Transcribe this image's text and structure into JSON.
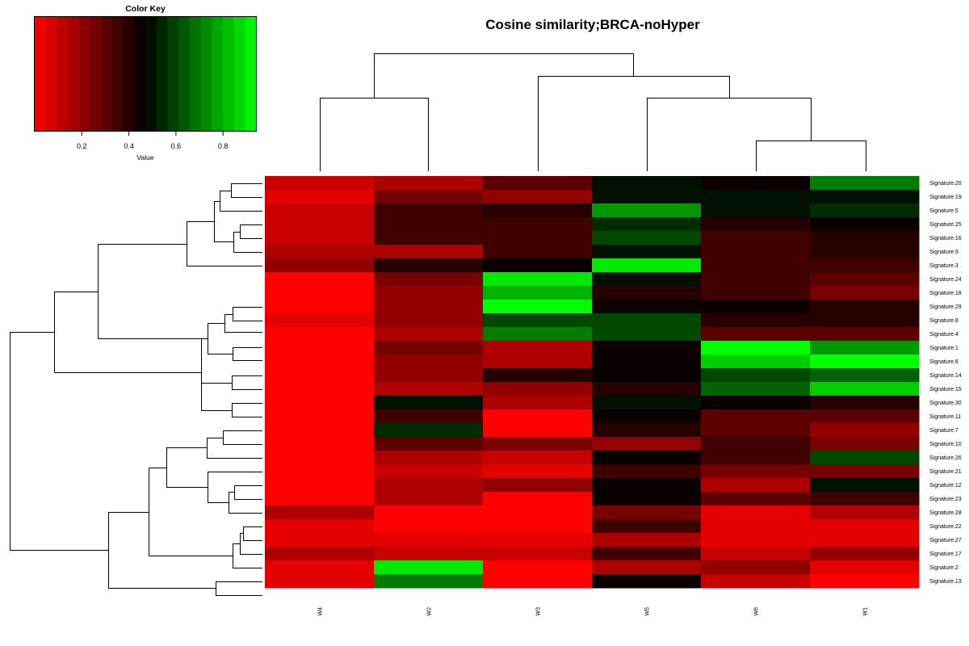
{
  "chart_data": {
    "type": "heatmap",
    "title": "Cosine similarity;BRCA-noHyper",
    "columns": [
      "W4",
      "W2",
      "W3",
      "W5",
      "W6",
      "W1"
    ],
    "rows": [
      "Signature.20",
      "Signature.19",
      "Signature.5",
      "Signature.25",
      "Signature.16",
      "Signature.9",
      "Signature.3",
      "Signature.24",
      "Signature.18",
      "Signature.29",
      "Signature.8",
      "Signature.4",
      "Signature.1",
      "Signature.6",
      "Signature.14",
      "Signature.15",
      "Signature.30",
      "Signature.11",
      "Signature.7",
      "Signature.10",
      "Signature.26",
      "Signature.21",
      "Signature.12",
      "Signature.23",
      "Signature.28",
      "Signature.22",
      "Signature.27",
      "Signature.17",
      "Signature.2",
      "Signature.13"
    ],
    "values": [
      [
        0.1,
        0.15,
        0.3,
        0.5,
        0.45,
        0.7
      ],
      [
        0.05,
        0.25,
        0.2,
        0.5,
        0.5,
        0.5
      ],
      [
        0.1,
        0.35,
        0.4,
        0.75,
        0.5,
        0.55
      ],
      [
        0.1,
        0.35,
        0.35,
        0.55,
        0.4,
        0.45
      ],
      [
        0.1,
        0.35,
        0.35,
        0.6,
        0.35,
        0.4
      ],
      [
        0.15,
        0.15,
        0.35,
        0.5,
        0.35,
        0.4
      ],
      [
        0.2,
        0.4,
        0.45,
        0.9,
        0.35,
        0.35
      ],
      [
        0.0,
        0.25,
        0.9,
        0.5,
        0.35,
        0.3
      ],
      [
        0.0,
        0.2,
        0.8,
        0.4,
        0.35,
        0.25
      ],
      [
        0.0,
        0.2,
        0.95,
        0.45,
        0.45,
        0.4
      ],
      [
        0.05,
        0.2,
        0.6,
        0.6,
        0.4,
        0.4
      ],
      [
        0.0,
        0.15,
        0.7,
        0.6,
        0.3,
        0.3
      ],
      [
        0.0,
        0.25,
        0.15,
        0.45,
        0.95,
        0.75
      ],
      [
        0.0,
        0.2,
        0.15,
        0.45,
        0.85,
        0.95
      ],
      [
        0.0,
        0.2,
        0.4,
        0.45,
        0.6,
        0.65
      ],
      [
        0.0,
        0.15,
        0.2,
        0.4,
        0.65,
        0.85
      ],
      [
        0.0,
        0.5,
        0.15,
        0.5,
        0.45,
        0.4
      ],
      [
        0.0,
        0.35,
        0.0,
        0.45,
        0.3,
        0.3
      ],
      [
        0.0,
        0.55,
        0.0,
        0.4,
        0.3,
        0.2
      ],
      [
        0.0,
        0.3,
        0.25,
        0.2,
        0.35,
        0.25
      ],
      [
        0.0,
        0.15,
        0.1,
        0.45,
        0.35,
        0.6
      ],
      [
        0.0,
        0.1,
        0.05,
        0.35,
        0.25,
        0.25
      ],
      [
        0.0,
        0.15,
        0.2,
        0.45,
        0.15,
        0.5
      ],
      [
        0.0,
        0.15,
        0.0,
        0.45,
        0.3,
        0.35
      ],
      [
        0.15,
        0.0,
        0.0,
        0.25,
        0.05,
        0.15
      ],
      [
        0.05,
        0.0,
        0.0,
        0.35,
        0.05,
        0.05
      ],
      [
        0.05,
        0.05,
        0.05,
        0.15,
        0.05,
        0.05
      ],
      [
        0.15,
        0.1,
        0.1,
        0.35,
        0.1,
        0.2
      ],
      [
        0.05,
        0.9,
        0.0,
        0.15,
        0.2,
        0.05
      ],
      [
        0.05,
        0.7,
        0.0,
        0.45,
        0.1,
        0.0
      ]
    ],
    "color_key": {
      "title": "Color Key",
      "xlabel": "Value",
      "ticks": [
        "0.2",
        "0.4",
        "0.6",
        "0.8"
      ],
      "tick_values": [
        0.2,
        0.4,
        0.6,
        0.8
      ],
      "range": [
        0,
        0.94
      ],
      "low_color": "#ff0000",
      "mid_color": "#000000",
      "high_color": "#00ff00",
      "n_bins": 20
    }
  }
}
